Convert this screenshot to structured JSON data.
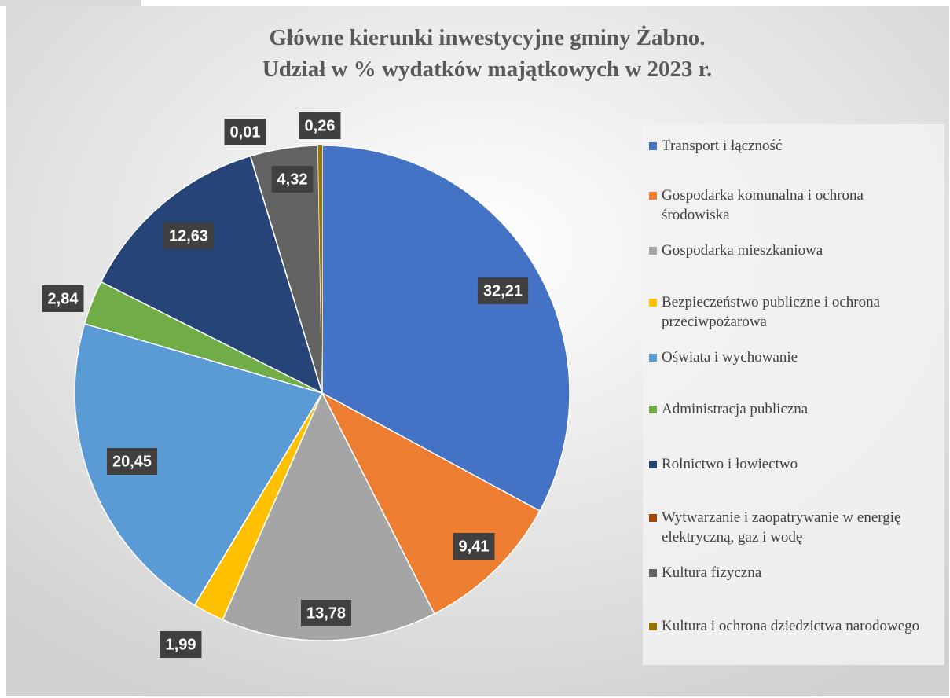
{
  "chart_data": {
    "type": "pie",
    "title": "Główne kierunki inwestycyjne gminy Żabno.",
    "subtitle": "Udział w % wydatków majątkowych w 2023 r.",
    "categories": [
      "Transport i łączność",
      "Gospodarka komunalna i ochrona środowiska",
      "Gospodarka mieszkaniowa",
      "Bezpieczeństwo publiczne i ochrona przeciwpożarowa",
      "Oświata i wychowanie",
      "Administracja publiczna",
      "Rolnictwo i łowiectwo",
      "Wytwarzanie i zaopatrywanie w energię elektryczną, gaz i wodę",
      "Kultura fizyczna",
      "Kultura i ochrona dziedzictwa narodowego"
    ],
    "values": [
      32.21,
      9.41,
      13.78,
      1.99,
      20.45,
      2.84,
      12.63,
      0.01,
      4.32,
      0.26
    ],
    "value_labels": [
      "32,21",
      "9,41",
      "13,78",
      "1,99",
      "20,45",
      "2,84",
      "12,63",
      "0,01",
      "4,32",
      "0,26"
    ],
    "colors": [
      "#4472c4",
      "#ed7d31",
      "#a5a5a5",
      "#ffc000",
      "#5b9bd5",
      "#70ad47",
      "#264478",
      "#9e480e",
      "#636363",
      "#997300"
    ],
    "legend": "right"
  }
}
